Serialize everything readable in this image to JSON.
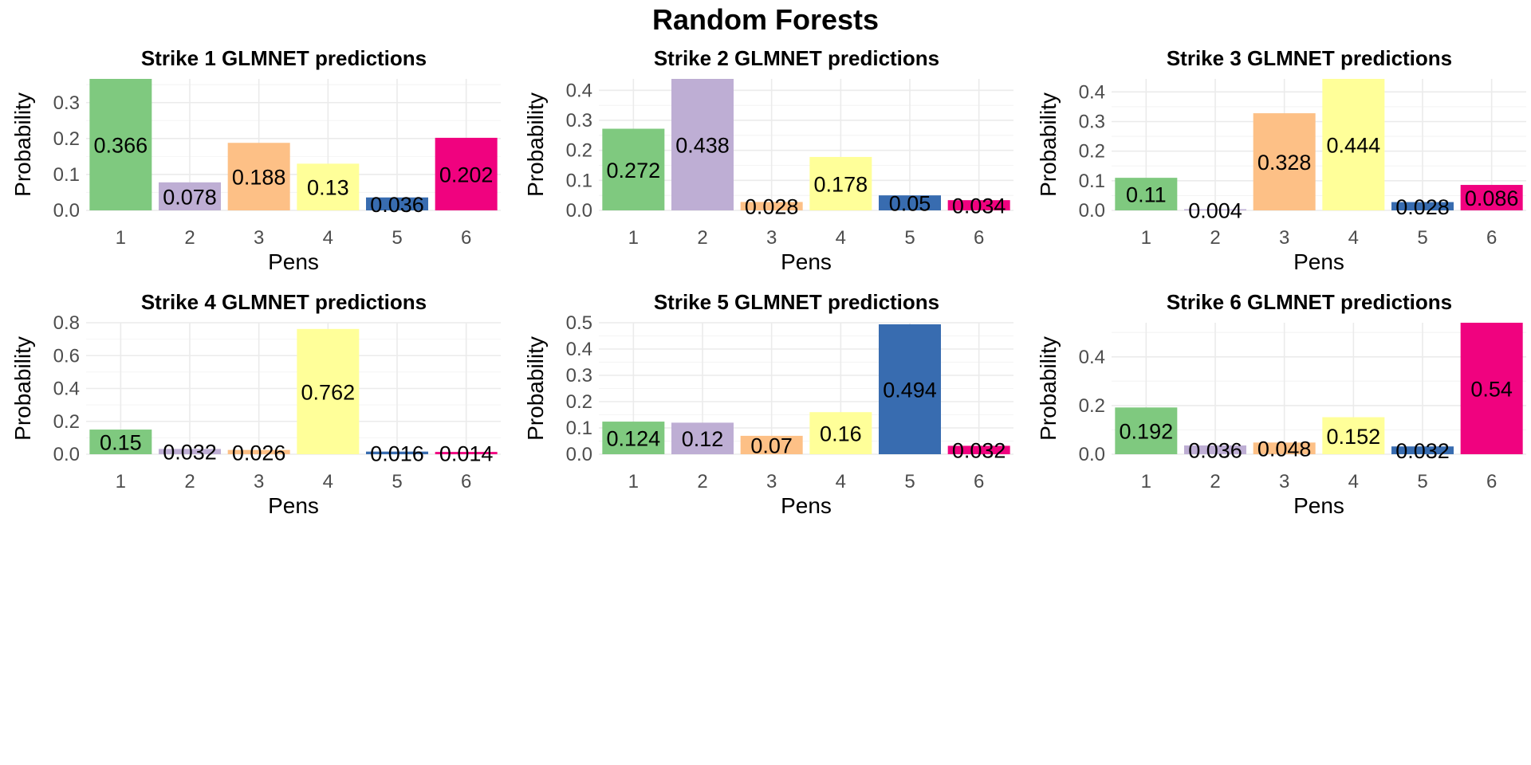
{
  "title": "Random Forests",
  "colors": [
    "#7FC97F",
    "#BEAED4",
    "#FDC086",
    "#FFFF99",
    "#386CB0",
    "#F0027F"
  ],
  "chart_data": [
    {
      "type": "bar",
      "title": "Strike 1 GLMNET predictions",
      "xlabel": "Pens",
      "ylabel": "Probability",
      "categories": [
        "1",
        "2",
        "3",
        "4",
        "5",
        "6"
      ],
      "values": [
        0.366,
        0.078,
        0.188,
        0.13,
        0.036,
        0.202
      ],
      "labels": [
        "0.366",
        "0.078",
        "0.188",
        "0.13",
        "0.036",
        "0.202"
      ],
      "ylim": [
        0,
        0.366
      ],
      "yticks": [
        0,
        0.1,
        0.2,
        0.3
      ],
      "ytick_labels": [
        "0.0",
        "0.1",
        "0.2",
        "0.3"
      ],
      "grid": true
    },
    {
      "type": "bar",
      "title": "Strike 2 GLMNET predictions",
      "xlabel": "Pens",
      "ylabel": "Probability",
      "categories": [
        "1",
        "2",
        "3",
        "4",
        "5",
        "6"
      ],
      "values": [
        0.272,
        0.438,
        0.028,
        0.178,
        0.05,
        0.034
      ],
      "labels": [
        "0.272",
        "0.438",
        "0.028",
        "0.178",
        "0.05",
        "0.034"
      ],
      "ylim": [
        0,
        0.438
      ],
      "yticks": [
        0,
        0.1,
        0.2,
        0.3,
        0.4
      ],
      "ytick_labels": [
        "0.0",
        "0.1",
        "0.2",
        "0.3",
        "0.4"
      ],
      "grid": true
    },
    {
      "type": "bar",
      "title": "Strike 3 GLMNET predictions",
      "xlabel": "Pens",
      "ylabel": "Probability",
      "categories": [
        "1",
        "2",
        "3",
        "4",
        "5",
        "6"
      ],
      "values": [
        0.11,
        0.004,
        0.328,
        0.444,
        0.028,
        0.086
      ],
      "labels": [
        "0.11",
        "0.004",
        "0.328",
        "0.444",
        "0.028",
        "0.086"
      ],
      "ylim": [
        0,
        0.444
      ],
      "yticks": [
        0,
        0.1,
        0.2,
        0.3,
        0.4
      ],
      "ytick_labels": [
        "0.0",
        "0.1",
        "0.2",
        "0.3",
        "0.4"
      ],
      "grid": true
    },
    {
      "type": "bar",
      "title": "Strike 4 GLMNET predictions",
      "xlabel": "Pens",
      "ylabel": "Probability",
      "categories": [
        "1",
        "2",
        "3",
        "4",
        "5",
        "6"
      ],
      "values": [
        0.15,
        0.032,
        0.026,
        0.762,
        0.016,
        0.014
      ],
      "labels": [
        "0.15",
        "0.032",
        "0.026",
        "0.762",
        "0.016",
        "0.014"
      ],
      "ylim": [
        0,
        0.8
      ],
      "yticks": [
        0,
        0.2,
        0.4,
        0.6,
        0.8
      ],
      "ytick_labels": [
        "0.0",
        "0.2",
        "0.4",
        "0.6",
        "0.8"
      ],
      "grid": true
    },
    {
      "type": "bar",
      "title": "Strike 5 GLMNET predictions",
      "xlabel": "Pens",
      "ylabel": "Probability",
      "categories": [
        "1",
        "2",
        "3",
        "4",
        "5",
        "6"
      ],
      "values": [
        0.124,
        0.12,
        0.07,
        0.16,
        0.494,
        0.032
      ],
      "labels": [
        "0.124",
        "0.12",
        "0.07",
        "0.16",
        "0.494",
        "0.032"
      ],
      "ylim": [
        0,
        0.5
      ],
      "yticks": [
        0,
        0.1,
        0.2,
        0.3,
        0.4,
        0.5
      ],
      "ytick_labels": [
        "0.0",
        "0.1",
        "0.2",
        "0.3",
        "0.4",
        "0.5"
      ],
      "grid": true
    },
    {
      "type": "bar",
      "title": "Strike 6 GLMNET predictions",
      "xlabel": "Pens",
      "ylabel": "Probability",
      "categories": [
        "1",
        "2",
        "3",
        "4",
        "5",
        "6"
      ],
      "values": [
        0.192,
        0.036,
        0.048,
        0.152,
        0.032,
        0.54
      ],
      "labels": [
        "0.192",
        "0.036",
        "0.048",
        "0.152",
        "0.032",
        "0.54"
      ],
      "ylim": [
        0,
        0.54
      ],
      "yticks": [
        0,
        0.2,
        0.4
      ],
      "ytick_labels": [
        "0.0",
        "0.2",
        "0.4"
      ],
      "grid": true
    }
  ]
}
